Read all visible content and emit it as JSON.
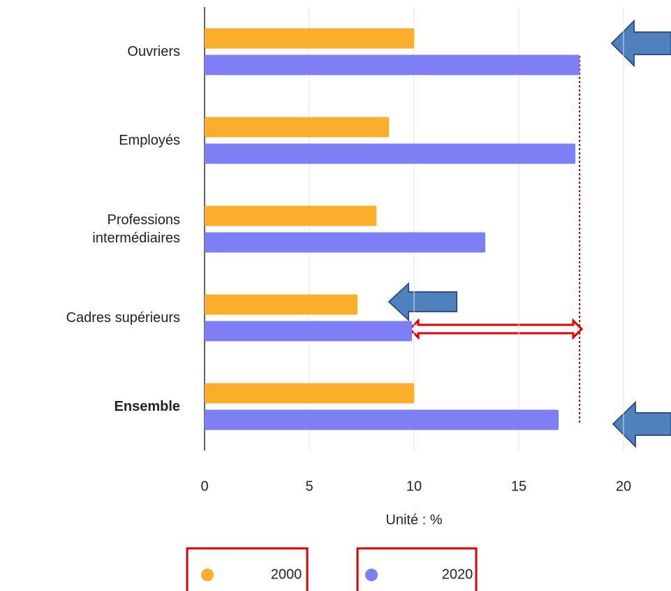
{
  "chart_data": {
    "type": "bar",
    "orientation": "horizontal",
    "categories": [
      "Ouvriers",
      "Employés",
      "Professions\nintermédiaires",
      "Cadres supérieurs",
      "Ensemble"
    ],
    "series": [
      {
        "name": "2000",
        "color": "#fbae2c",
        "values": [
          10,
          8.8,
          8.2,
          7.3,
          10
        ]
      },
      {
        "name": "2020",
        "color": "#7f7ff5",
        "values": [
          17.9,
          17.7,
          13.4,
          9.9,
          16.9
        ]
      }
    ],
    "xlabel": "Unité : %",
    "xlim": [
      0,
      20
    ],
    "xticks": [
      0,
      5,
      10,
      15,
      20
    ],
    "grid": true
  }
}
